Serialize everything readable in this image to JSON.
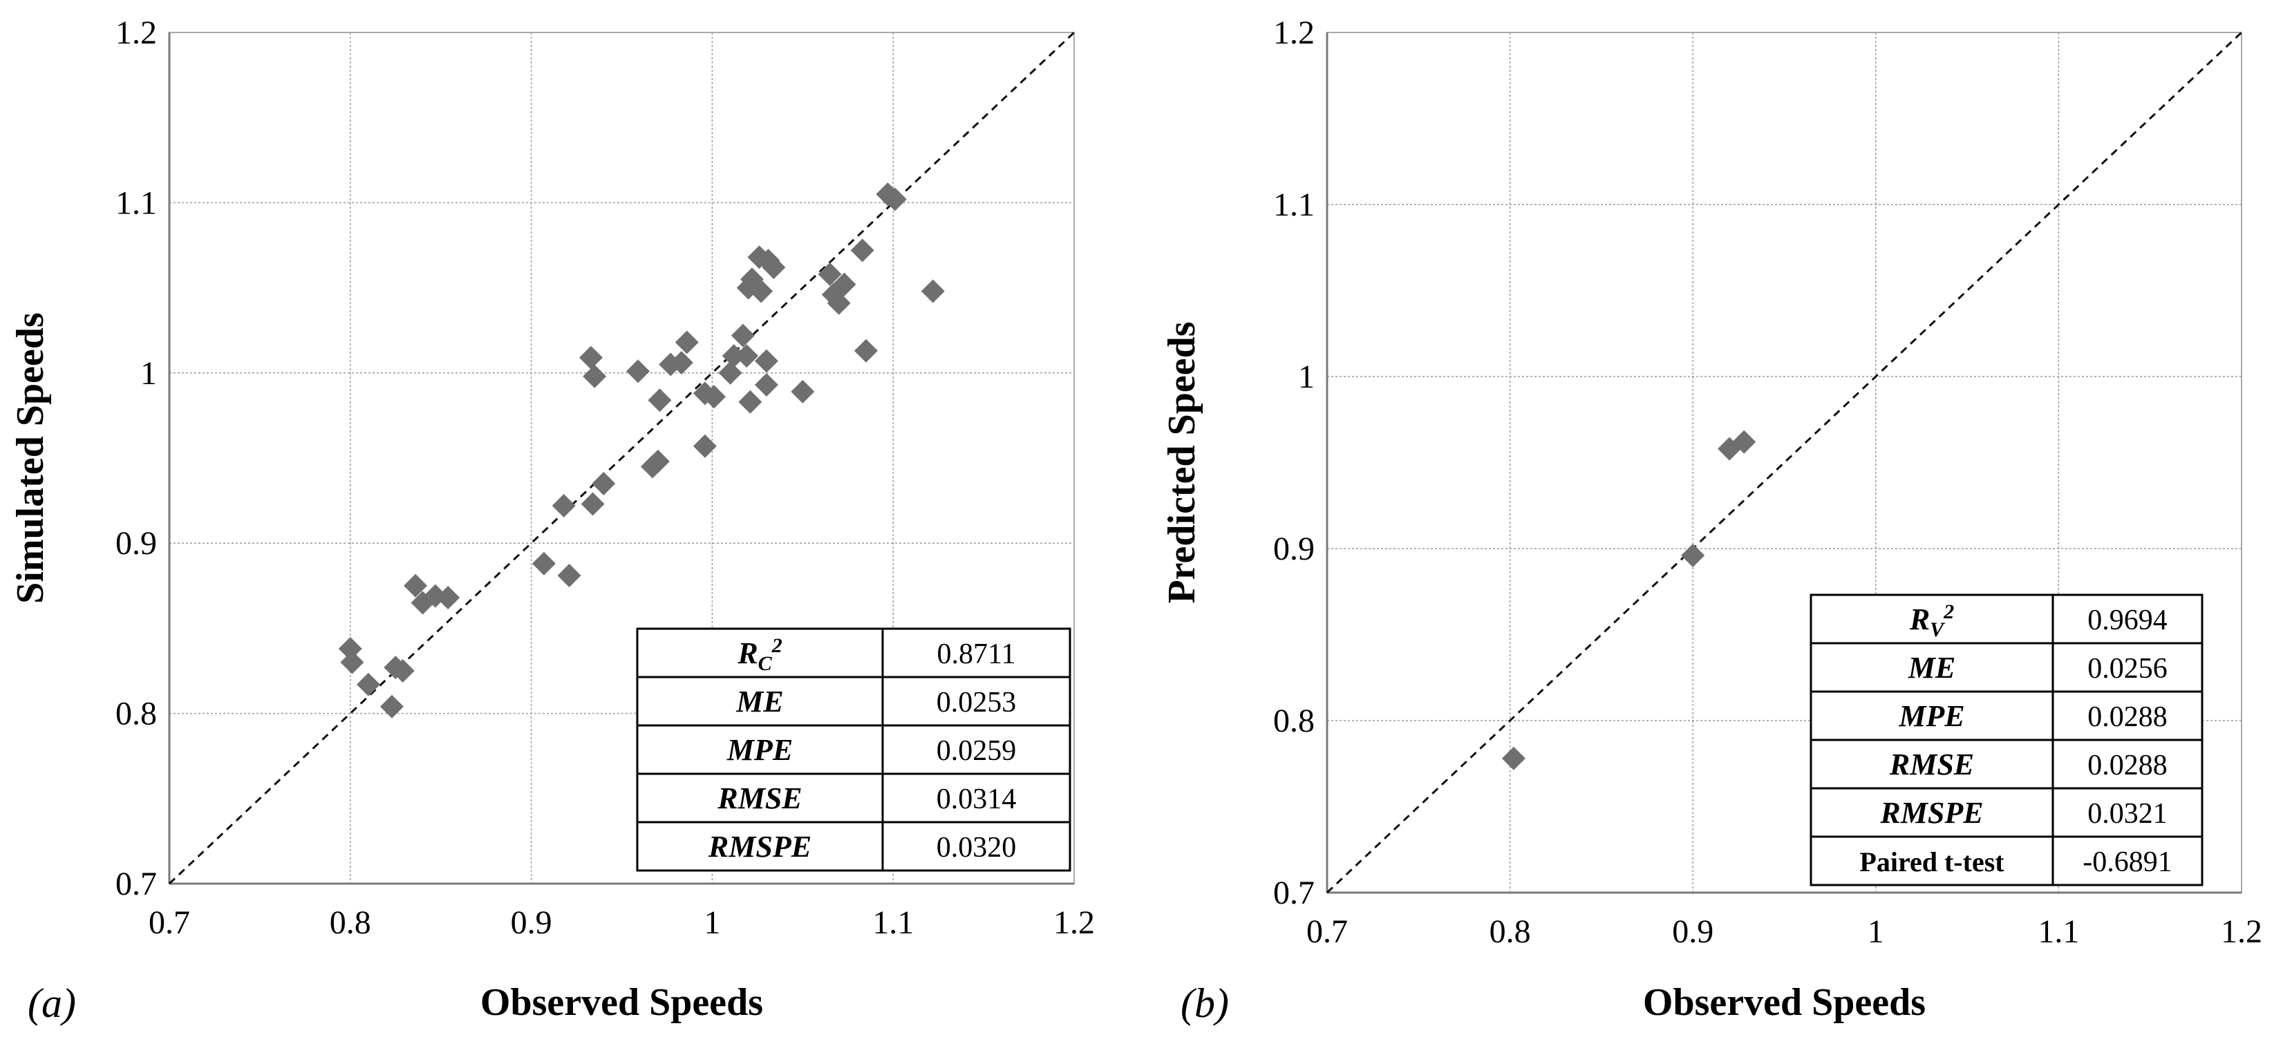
{
  "chart_data": [
    {
      "type": "scatter",
      "panel_label": "(a)",
      "xlabel": "Observed Speeds",
      "ylabel": "Simulated Speeds",
      "xlim": [
        0.7,
        1.2
      ],
      "ylim": [
        0.7,
        1.2
      ],
      "x_ticks": [
        "0.7",
        "0.8",
        "0.9",
        "1",
        "1.1",
        "1.2"
      ],
      "y_ticks": [
        "0.7",
        "0.8",
        "0.9",
        "1",
        "1.1",
        "1.2"
      ],
      "grid": true,
      "reference_line": "y = x (dashed)",
      "marker": "diamond",
      "marker_color": "#6f6f6f",
      "points": [
        [
          0.8,
          0.838
        ],
        [
          0.801,
          0.83
        ],
        [
          0.81,
          0.817
        ],
        [
          0.823,
          0.804
        ],
        [
          0.825,
          0.827
        ],
        [
          0.829,
          0.825
        ],
        [
          0.836,
          0.875
        ],
        [
          0.84,
          0.865
        ],
        [
          0.847,
          0.869
        ],
        [
          0.854,
          0.868
        ],
        [
          0.907,
          0.888
        ],
        [
          0.918,
          0.922
        ],
        [
          0.921,
          0.881
        ],
        [
          0.933,
          1.009
        ],
        [
          0.934,
          0.923
        ],
        [
          0.935,
          0.998
        ],
        [
          0.94,
          0.935
        ],
        [
          0.959,
          1.001
        ],
        [
          0.967,
          0.945
        ],
        [
          0.97,
          0.948
        ],
        [
          0.971,
          0.984
        ],
        [
          0.977,
          1.005
        ],
        [
          0.983,
          1.006
        ],
        [
          0.986,
          1.018
        ],
        [
          0.996,
          0.957
        ],
        [
          0.996,
          0.988
        ],
        [
          1.001,
          0.986
        ],
        [
          1.01,
          1.0
        ],
        [
          1.012,
          1.01
        ],
        [
          1.017,
          1.022
        ],
        [
          1.019,
          1.01
        ],
        [
          1.02,
          1.05
        ],
        [
          1.021,
          0.983
        ],
        [
          1.022,
          1.055
        ],
        [
          1.026,
          1.068
        ],
        [
          1.027,
          1.048
        ],
        [
          1.03,
          1.007
        ],
        [
          1.03,
          0.993
        ],
        [
          1.031,
          1.066
        ],
        [
          1.034,
          1.062
        ],
        [
          1.05,
          0.989
        ],
        [
          1.065,
          1.058
        ],
        [
          1.067,
          1.046
        ],
        [
          1.07,
          1.041
        ],
        [
          1.073,
          1.052
        ],
        [
          1.083,
          1.072
        ],
        [
          1.085,
          1.013
        ],
        [
          1.097,
          1.105
        ],
        [
          1.101,
          1.102
        ],
        [
          1.122,
          1.048
        ]
      ],
      "stats_table": [
        {
          "label": "R",
          "sub": "C",
          "sup": "2",
          "value": "0.8711"
        },
        {
          "label": "ME",
          "value": "0.0253"
        },
        {
          "label": "MPE",
          "value": "0.0259"
        },
        {
          "label": "RMSE",
          "value": "0.0314"
        },
        {
          "label": "RMSPE",
          "value": "0.0320"
        }
      ]
    },
    {
      "type": "scatter",
      "panel_label": "(b)",
      "xlabel": "Observed Speeds",
      "ylabel": "Predicted Speeds",
      "xlim": [
        0.7,
        1.2
      ],
      "ylim": [
        0.7,
        1.2
      ],
      "x_ticks": [
        "0.7",
        "0.8",
        "0.9",
        "1",
        "1.1",
        "1.2"
      ],
      "y_ticks": [
        "0.7",
        "0.8",
        "0.9",
        "1",
        "1.1",
        "1.2"
      ],
      "grid": true,
      "reference_line": "y = x (dashed)",
      "marker": "diamond",
      "marker_color": "#6f6f6f",
      "points": [
        [
          0.802,
          0.778
        ],
        [
          0.9,
          0.896
        ],
        [
          0.92,
          0.958
        ],
        [
          0.928,
          0.962
        ]
      ],
      "stats_table": [
        {
          "label": "R",
          "sub": "V",
          "sup": "2",
          "value": "0.9694"
        },
        {
          "label": "ME",
          "value": "0.0256"
        },
        {
          "label": "MPE",
          "value": "0.0288"
        },
        {
          "label": "RMSE",
          "value": "0.0288"
        },
        {
          "label": "RMSPE",
          "value": "0.0321"
        },
        {
          "label": "Paired t-test",
          "value": "-0.6891",
          "plain": true
        }
      ]
    }
  ]
}
